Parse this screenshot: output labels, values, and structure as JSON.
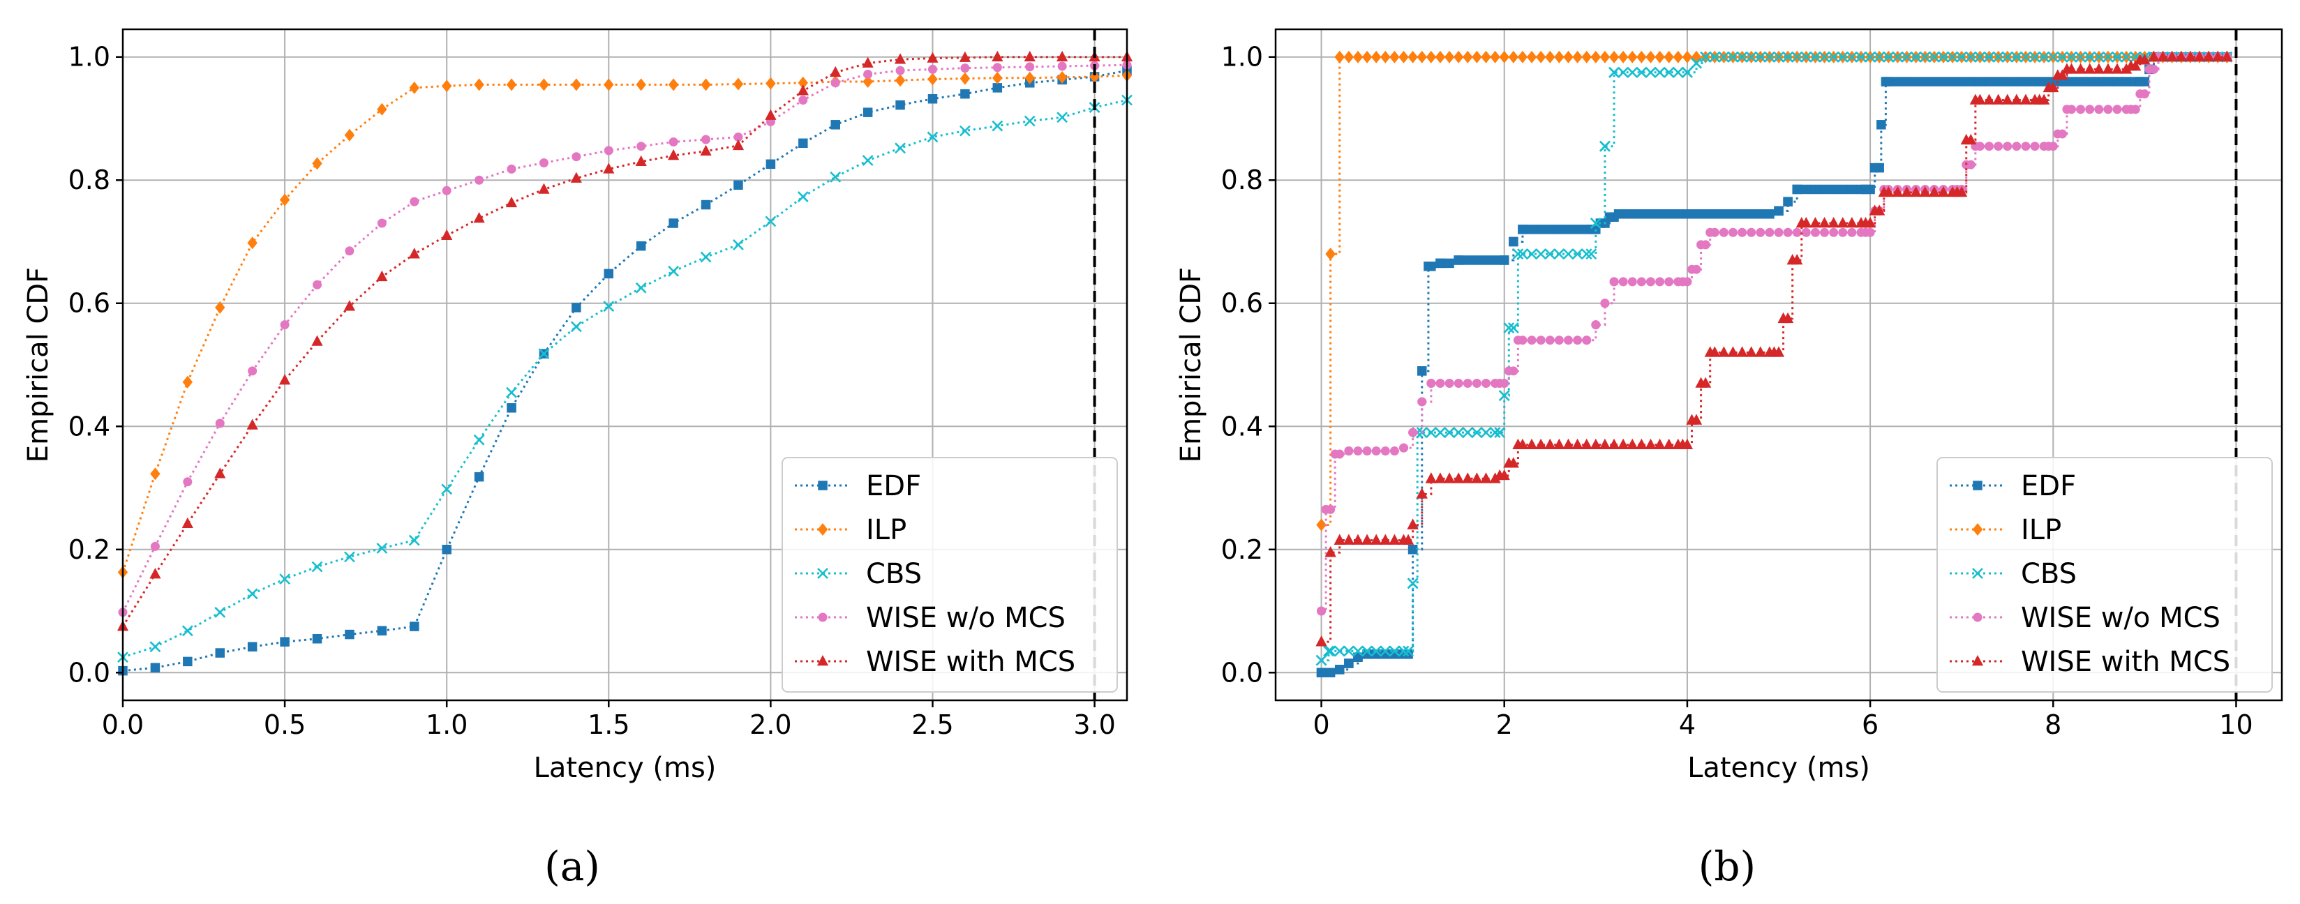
{
  "colors": {
    "EDF": "#1f77b4",
    "ILP": "#ff7f0e",
    "CBS": "#17becf",
    "WISE w/o MCS": "#e377c2",
    "WISE with MCS": "#d62728"
  },
  "chart_data": [
    {
      "type": "line",
      "caption": "(a)",
      "xlabel": "Latency (ms)",
      "ylabel": "Empirical CDF",
      "xlim": [
        0,
        3.1
      ],
      "ylim": [
        -0.045,
        1.045
      ],
      "xticks": [
        0.0,
        0.5,
        1.0,
        1.5,
        2.0,
        2.5,
        3.0
      ],
      "xtick_labels": [
        "0.0",
        "0.5",
        "1.0",
        "1.5",
        "2.0",
        "2.5",
        "3.0"
      ],
      "yticks": [
        0.0,
        0.2,
        0.4,
        0.6,
        0.8,
        1.0
      ],
      "ytick_labels": [
        "0.0",
        "0.2",
        "0.4",
        "0.6",
        "0.8",
        "1.0"
      ],
      "vline": 3.0,
      "legend": [
        "EDF",
        "ILP",
        "CBS",
        "WISE w/o MCS",
        "WISE with MCS"
      ],
      "legend_position": "lower-right",
      "x": [
        0.0,
        0.1,
        0.2,
        0.3,
        0.4,
        0.5,
        0.6,
        0.7,
        0.8,
        0.9,
        1.0,
        1.1,
        1.2,
        1.3,
        1.4,
        1.5,
        1.6,
        1.7,
        1.8,
        1.9,
        2.0,
        2.1,
        2.2,
        2.3,
        2.4,
        2.5,
        2.6,
        2.7,
        2.8,
        2.9,
        3.0,
        3.1
      ],
      "series": [
        {
          "name": "EDF",
          "marker": "square",
          "values": [
            0.003,
            0.008,
            0.018,
            0.032,
            0.042,
            0.05,
            0.055,
            0.062,
            0.068,
            0.075,
            0.2,
            0.318,
            0.43,
            0.518,
            0.593,
            0.648,
            0.693,
            0.73,
            0.76,
            0.792,
            0.826,
            0.86,
            0.89,
            0.91,
            0.922,
            0.932,
            0.94,
            0.95,
            0.958,
            0.963,
            0.968,
            0.978
          ]
        },
        {
          "name": "ILP",
          "marker": "diamond",
          "values": [
            0.163,
            0.323,
            0.472,
            0.593,
            0.698,
            0.768,
            0.827,
            0.873,
            0.915,
            0.95,
            0.953,
            0.955,
            0.955,
            0.955,
            0.955,
            0.955,
            0.955,
            0.955,
            0.955,
            0.956,
            0.957,
            0.958,
            0.96,
            0.96,
            0.962,
            0.964,
            0.965,
            0.966,
            0.966,
            0.967,
            0.968,
            0.97
          ]
        },
        {
          "name": "CBS",
          "marker": "x",
          "values": [
            0.025,
            0.042,
            0.068,
            0.098,
            0.128,
            0.152,
            0.172,
            0.188,
            0.202,
            0.215,
            0.298,
            0.378,
            0.455,
            0.518,
            0.562,
            0.595,
            0.625,
            0.652,
            0.675,
            0.695,
            0.733,
            0.773,
            0.805,
            0.832,
            0.852,
            0.87,
            0.88,
            0.888,
            0.896,
            0.902,
            0.918,
            0.93
          ]
        },
        {
          "name": "WISE w/o MCS",
          "marker": "circle",
          "values": [
            0.098,
            0.205,
            0.31,
            0.405,
            0.49,
            0.565,
            0.63,
            0.685,
            0.73,
            0.765,
            0.783,
            0.8,
            0.818,
            0.828,
            0.838,
            0.848,
            0.855,
            0.862,
            0.866,
            0.87,
            0.895,
            0.93,
            0.958,
            0.972,
            0.978,
            0.98,
            0.982,
            0.983,
            0.984,
            0.985,
            0.986,
            0.987
          ]
        },
        {
          "name": "WISE with MCS",
          "marker": "triangle",
          "values": [
            0.075,
            0.16,
            0.242,
            0.323,
            0.402,
            0.475,
            0.538,
            0.595,
            0.643,
            0.68,
            0.71,
            0.738,
            0.763,
            0.785,
            0.803,
            0.818,
            0.83,
            0.84,
            0.847,
            0.856,
            0.905,
            0.945,
            0.975,
            0.99,
            0.996,
            0.998,
            0.999,
            1.0,
            1.0,
            1.0,
            1.0,
            1.0
          ]
        }
      ]
    },
    {
      "type": "line",
      "caption": "(b)",
      "xlabel": "Latency (ms)",
      "ylabel": "Empirical CDF",
      "xlim": [
        -0.5,
        10.5
      ],
      "ylim": [
        -0.045,
        1.045
      ],
      "xticks": [
        0,
        2,
        4,
        6,
        8,
        10
      ],
      "xtick_labels": [
        "0",
        "2",
        "4",
        "6",
        "8",
        "10"
      ],
      "yticks": [
        0.0,
        0.2,
        0.4,
        0.6,
        0.8,
        1.0
      ],
      "ytick_labels": [
        "0.0",
        "0.2",
        "0.4",
        "0.6",
        "0.8",
        "1.0"
      ],
      "vline": 10.0,
      "legend": [
        "EDF",
        "ILP",
        "CBS",
        "WISE w/o MCS",
        "WISE with MCS"
      ],
      "legend_position": "lower-right",
      "series": [
        {
          "name": "EDF",
          "marker": "square",
          "dense": true,
          "steps": [
            [
              0.0,
              0.0
            ],
            [
              0.2,
              0.005
            ],
            [
              0.3,
              0.015
            ],
            [
              0.4,
              0.025
            ],
            [
              0.5,
              0.03
            ],
            [
              0.95,
              0.03
            ],
            [
              1.0,
              0.2
            ],
            [
              1.1,
              0.49
            ],
            [
              1.17,
              0.66
            ],
            [
              1.3,
              0.665
            ],
            [
              1.5,
              0.67
            ],
            [
              2.0,
              0.67
            ],
            [
              2.1,
              0.7
            ],
            [
              2.2,
              0.72
            ],
            [
              2.95,
              0.72
            ],
            [
              3.05,
              0.73
            ],
            [
              3.15,
              0.74
            ],
            [
              3.25,
              0.745
            ],
            [
              4.9,
              0.745
            ],
            [
              5.0,
              0.75
            ],
            [
              5.1,
              0.765
            ],
            [
              5.2,
              0.785
            ],
            [
              5.95,
              0.785
            ],
            [
              6.05,
              0.82
            ],
            [
              6.12,
              0.89
            ],
            [
              6.17,
              0.96
            ],
            [
              8.95,
              0.96
            ],
            [
              9.05,
              0.98
            ],
            [
              9.1,
              1.0
            ],
            [
              9.9,
              1.0
            ]
          ]
        },
        {
          "name": "ILP",
          "marker": "diamond",
          "dense": true,
          "steps": [
            [
              0.0,
              0.24
            ],
            [
              0.1,
              0.68
            ],
            [
              0.2,
              1.0
            ],
            [
              9.9,
              1.0
            ]
          ]
        },
        {
          "name": "CBS",
          "marker": "x",
          "dense": true,
          "steps": [
            [
              0.0,
              0.02
            ],
            [
              0.08,
              0.035
            ],
            [
              0.95,
              0.035
            ],
            [
              1.0,
              0.145
            ],
            [
              1.05,
              0.39
            ],
            [
              1.95,
              0.39
            ],
            [
              2.0,
              0.45
            ],
            [
              2.05,
              0.56
            ],
            [
              2.15,
              0.68
            ],
            [
              2.95,
              0.68
            ],
            [
              3.0,
              0.73
            ],
            [
              3.1,
              0.855
            ],
            [
              3.2,
              0.975
            ],
            [
              4.0,
              0.975
            ],
            [
              4.1,
              0.99
            ],
            [
              4.2,
              1.0
            ],
            [
              9.9,
              1.0
            ]
          ]
        },
        {
          "name": "WISE w/o MCS",
          "marker": "circle",
          "dense": true,
          "steps": [
            [
              0.0,
              0.1
            ],
            [
              0.05,
              0.265
            ],
            [
              0.15,
              0.355
            ],
            [
              0.3,
              0.36
            ],
            [
              0.9,
              0.365
            ],
            [
              1.0,
              0.39
            ],
            [
              1.1,
              0.44
            ],
            [
              1.2,
              0.47
            ],
            [
              1.95,
              0.47
            ],
            [
              2.05,
              0.49
            ],
            [
              2.15,
              0.54
            ],
            [
              2.9,
              0.54
            ],
            [
              3.0,
              0.565
            ],
            [
              3.1,
              0.6
            ],
            [
              3.2,
              0.635
            ],
            [
              3.95,
              0.635
            ],
            [
              4.05,
              0.655
            ],
            [
              4.15,
              0.695
            ],
            [
              4.25,
              0.715
            ],
            [
              5.95,
              0.715
            ],
            [
              6.05,
              0.75
            ],
            [
              6.15,
              0.785
            ],
            [
              6.95,
              0.785
            ],
            [
              7.05,
              0.825
            ],
            [
              7.15,
              0.855
            ],
            [
              7.95,
              0.855
            ],
            [
              8.05,
              0.875
            ],
            [
              8.15,
              0.915
            ],
            [
              8.85,
              0.915
            ],
            [
              8.95,
              0.94
            ],
            [
              9.05,
              0.98
            ],
            [
              9.15,
              1.0
            ],
            [
              9.9,
              1.0
            ]
          ]
        },
        {
          "name": "WISE with MCS",
          "marker": "triangle",
          "dense": true,
          "steps": [
            [
              0.0,
              0.05
            ],
            [
              0.1,
              0.195
            ],
            [
              0.2,
              0.215
            ],
            [
              0.95,
              0.215
            ],
            [
              1.0,
              0.24
            ],
            [
              1.1,
              0.29
            ],
            [
              1.2,
              0.315
            ],
            [
              1.95,
              0.32
            ],
            [
              2.05,
              0.34
            ],
            [
              2.15,
              0.37
            ],
            [
              3.95,
              0.37
            ],
            [
              4.05,
              0.41
            ],
            [
              4.15,
              0.47
            ],
            [
              4.25,
              0.52
            ],
            [
              4.95,
              0.52
            ],
            [
              5.05,
              0.575
            ],
            [
              5.15,
              0.67
            ],
            [
              5.25,
              0.73
            ],
            [
              5.95,
              0.73
            ],
            [
              6.05,
              0.75
            ],
            [
              6.15,
              0.78
            ],
            [
              6.95,
              0.78
            ],
            [
              7.05,
              0.865
            ],
            [
              7.15,
              0.93
            ],
            [
              7.85,
              0.93
            ],
            [
              7.95,
              0.95
            ],
            [
              8.05,
              0.97
            ],
            [
              8.15,
              0.98
            ],
            [
              8.85,
              0.985
            ],
            [
              8.95,
              0.995
            ],
            [
              9.1,
              1.0
            ],
            [
              9.9,
              1.0
            ]
          ]
        }
      ]
    }
  ]
}
